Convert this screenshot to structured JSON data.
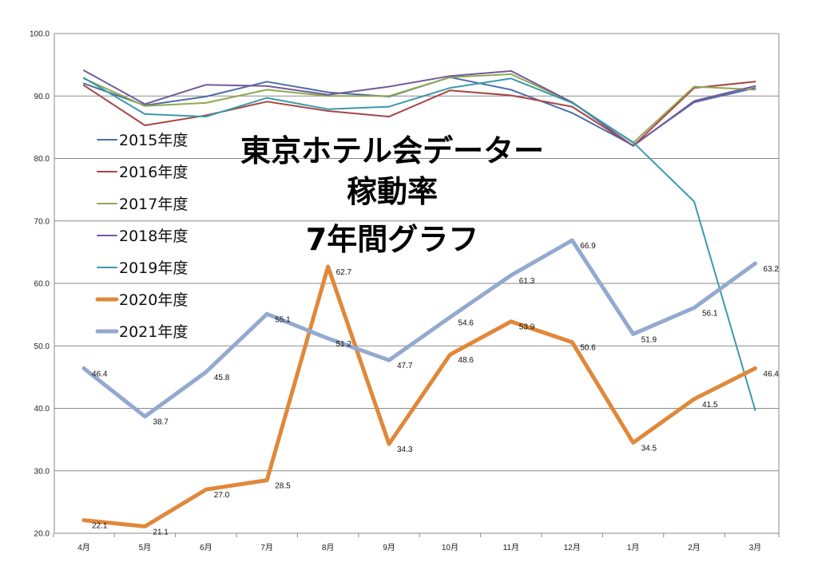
{
  "chart_data": {
    "type": "line",
    "title_lines": [
      "東京ホテル会データー",
      "稼動率",
      "7年間グラフ"
    ],
    "xlabel": "",
    "ylabel": "",
    "categories": [
      "4月",
      "5月",
      "6月",
      "7月",
      "8月",
      "9月",
      "10月",
      "11月",
      "12月",
      "1月",
      "2月",
      "3月"
    ],
    "ylim": [
      20,
      100
    ],
    "yticks": [
      "20.0",
      "30.0",
      "40.0",
      "50.0",
      "60.0",
      "70.0",
      "80.0",
      "90.0",
      "100.0"
    ],
    "grid": true,
    "legend_position": "left",
    "series": [
      {
        "name": "2015年度",
        "color": "#4a6fa5",
        "width": "thin",
        "labels": false,
        "values": [
          92.0,
          88.5,
          89.9,
          92.3,
          90.6,
          89.9,
          93.0,
          91.0,
          87.3,
          82.1,
          89.0,
          91.3
        ]
      },
      {
        "name": "2016年度",
        "color": "#a84545",
        "width": "thin",
        "labels": false,
        "values": [
          91.7,
          85.3,
          86.9,
          89.1,
          87.6,
          86.7,
          90.9,
          90.1,
          88.3,
          82.0,
          91.3,
          92.3
        ]
      },
      {
        "name": "2017年度",
        "color": "#8fa852",
        "width": "thin",
        "labels": false,
        "values": [
          92.8,
          88.4,
          88.9,
          91.0,
          90.0,
          90.0,
          93.0,
          93.5,
          89.0,
          82.5,
          91.5,
          91.0
        ]
      },
      {
        "name": "2018年度",
        "color": "#735a99",
        "width": "thin",
        "labels": false,
        "values": [
          94.1,
          88.7,
          91.8,
          91.6,
          90.2,
          91.5,
          93.2,
          94.0,
          89.0,
          82.0,
          89.2,
          91.6
        ]
      },
      {
        "name": "2019年度",
        "color": "#3a9aaa",
        "width": "thin",
        "labels": false,
        "values": [
          92.9,
          87.1,
          86.7,
          89.7,
          87.9,
          88.3,
          91.3,
          92.8,
          88.9,
          82.6,
          73.1,
          39.7
        ]
      },
      {
        "name": "2020年度",
        "color": "#e0883a",
        "width": "thick",
        "labels": true,
        "values": [
          22.1,
          21.1,
          27.0,
          28.5,
          62.7,
          34.3,
          48.6,
          53.9,
          50.6,
          34.5,
          41.5,
          46.4
        ],
        "value_labels": [
          "22.1",
          "21.1",
          "27.0",
          "28.5",
          "62.7",
          "34.3",
          "48.6",
          "53.9",
          "50.6",
          "34.5",
          "41.5",
          "46.4"
        ]
      },
      {
        "name": "2021年度",
        "color": "#94a9cf",
        "width": "thick",
        "labels": true,
        "values": [
          46.4,
          38.7,
          45.8,
          55.1,
          51.2,
          47.7,
          54.6,
          61.3,
          66.9,
          51.9,
          56.1,
          63.2
        ],
        "value_labels": [
          "46.4",
          "38.7",
          "45.8",
          "55.1",
          "51.2",
          "47.7",
          "54.6",
          "61.3",
          "66.9",
          "51.9",
          "56.1",
          "63.2"
        ]
      }
    ]
  }
}
